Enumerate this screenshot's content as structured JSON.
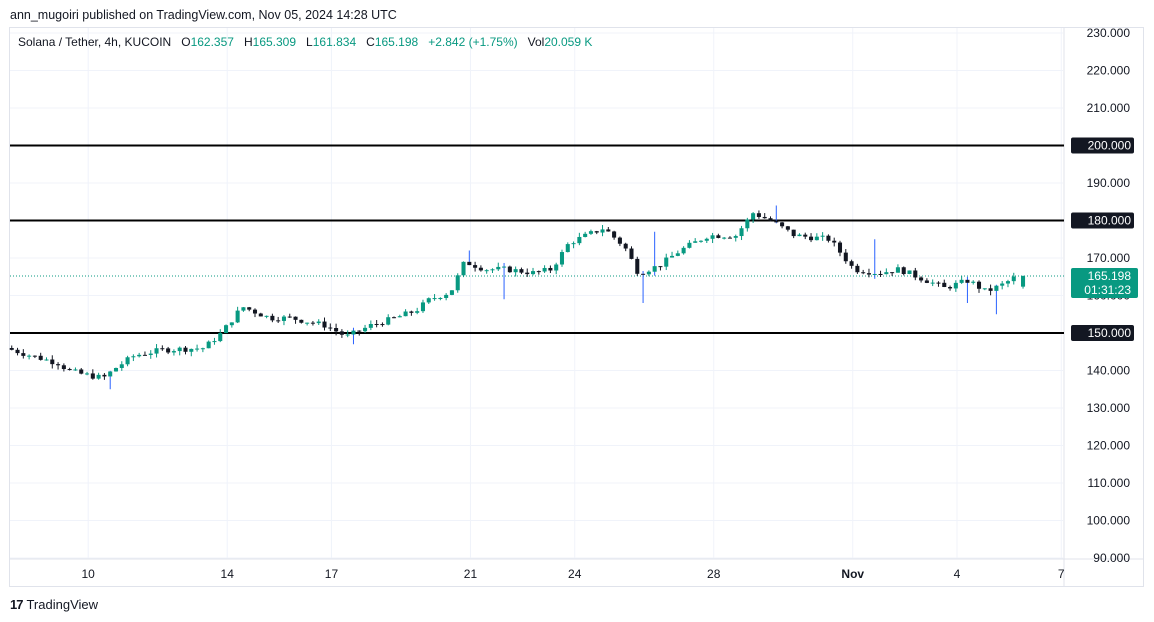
{
  "publisher_line": "ann_mugoiri published on TradingView.com, Nov 05, 2024 14:28 UTC",
  "legend": {
    "symbol": "Solana / Tether, 4h, KUCOIN",
    "o_label": "O",
    "o_value": "162.357",
    "h_label": "H",
    "h_value": "165.309",
    "l_label": "L",
    "l_value": "161.834",
    "c_label": "C",
    "c_value": "165.198",
    "change": "+2.842 (+1.75%)",
    "vol_label": "Vol",
    "vol_value": "20.059 K"
  },
  "footer": {
    "brand": "TradingView",
    "logo_text": "17"
  },
  "colors": {
    "up": "#089981",
    "down": "#131722",
    "wick_highlight": "#2962ff",
    "grid": "#f0f3fa",
    "level": "#000000"
  },
  "chart_data": {
    "type": "candlestick",
    "title": "Solana / Tether, 4h, KUCOIN",
    "ylim": [
      90,
      230
    ],
    "y_ticks": [
      "230.000",
      "220.000",
      "210.000",
      "200.000",
      "190.000",
      "180.000",
      "170.000",
      "160.000",
      "150.000",
      "140.000",
      "130.000",
      "120.000",
      "110.000",
      "100.000",
      "90.000"
    ],
    "y_tick_values": [
      230,
      220,
      210,
      200,
      190,
      180,
      170,
      160,
      150,
      140,
      130,
      120,
      110,
      100,
      90
    ],
    "x_ticks": [
      {
        "label": "10",
        "day": 10,
        "bold": false
      },
      {
        "label": "14",
        "day": 14,
        "bold": false
      },
      {
        "label": "17",
        "day": 17,
        "bold": false
      },
      {
        "label": "21",
        "day": 21,
        "bold": false
      },
      {
        "label": "24",
        "day": 24,
        "bold": false
      },
      {
        "label": "28",
        "day": 28,
        "bold": false
      },
      {
        "label": "Nov",
        "day": 32,
        "bold": true
      },
      {
        "label": "4",
        "day": 35,
        "bold": false
      },
      {
        "label": "7",
        "day": 38,
        "bold": false
      }
    ],
    "x_range_days": [
      7.75,
      38.05
    ],
    "horizontal_levels": [
      {
        "value": 200,
        "label": "200.000"
      },
      {
        "value": 180,
        "label": "180.000"
      },
      {
        "value": 150,
        "label": "150.000"
      }
    ],
    "current_price": {
      "value": 165.198,
      "label": "165.198",
      "countdown": "01:31:23"
    },
    "anchors": [
      [
        7.8,
        146
      ],
      [
        8.5,
        144
      ],
      [
        9.3,
        142
      ],
      [
        9.6,
        140
      ],
      [
        10.0,
        139
      ],
      [
        10.6,
        138
      ],
      [
        11.0,
        141
      ],
      [
        11.5,
        144
      ],
      [
        12.3,
        145.5
      ],
      [
        13.5,
        146
      ],
      [
        14.0,
        150
      ],
      [
        14.6,
        157
      ],
      [
        15.4,
        154
      ],
      [
        16.0,
        154
      ],
      [
        17.0,
        152
      ],
      [
        17.6,
        149
      ],
      [
        18.3,
        152
      ],
      [
        19.0,
        154
      ],
      [
        19.6,
        156
      ],
      [
        20.0,
        159
      ],
      [
        20.6,
        161
      ],
      [
        21.0,
        169
      ],
      [
        21.6,
        167
      ],
      [
        22.2,
        167
      ],
      [
        23.0,
        166
      ],
      [
        23.5,
        167
      ],
      [
        24.0,
        174
      ],
      [
        25.0,
        178
      ],
      [
        25.6,
        173
      ],
      [
        26.0,
        166
      ],
      [
        26.6,
        168
      ],
      [
        27.2,
        172
      ],
      [
        28.0,
        176
      ],
      [
        28.8,
        176
      ],
      [
        29.3,
        182
      ],
      [
        29.8,
        180
      ],
      [
        30.5,
        176
      ],
      [
        31.5,
        175
      ],
      [
        32.2,
        167
      ],
      [
        32.9,
        166
      ],
      [
        33.5,
        167
      ],
      [
        34.3,
        164
      ],
      [
        34.8,
        162
      ],
      [
        35.5,
        164
      ],
      [
        36.0,
        161
      ],
      [
        36.5,
        163
      ],
      [
        36.9,
        165.2
      ]
    ],
    "spikes": [
      {
        "day": 20.9,
        "high": 172
      },
      {
        "day": 22.0,
        "low": 159
      },
      {
        "day": 26.0,
        "low": 158
      },
      {
        "day": 26.3,
        "high": 177
      },
      {
        "day": 29.8,
        "high": 184
      },
      {
        "day": 32.6,
        "high": 175
      },
      {
        "day": 35.3,
        "low": 158
      },
      {
        "day": 36.2,
        "low": 155
      },
      {
        "day": 10.6,
        "low": 135
      },
      {
        "day": 17.6,
        "low": 147
      }
    ],
    "last_candle": {
      "open": 162.357,
      "high": 165.309,
      "low": 161.834,
      "close": 165.198
    }
  }
}
